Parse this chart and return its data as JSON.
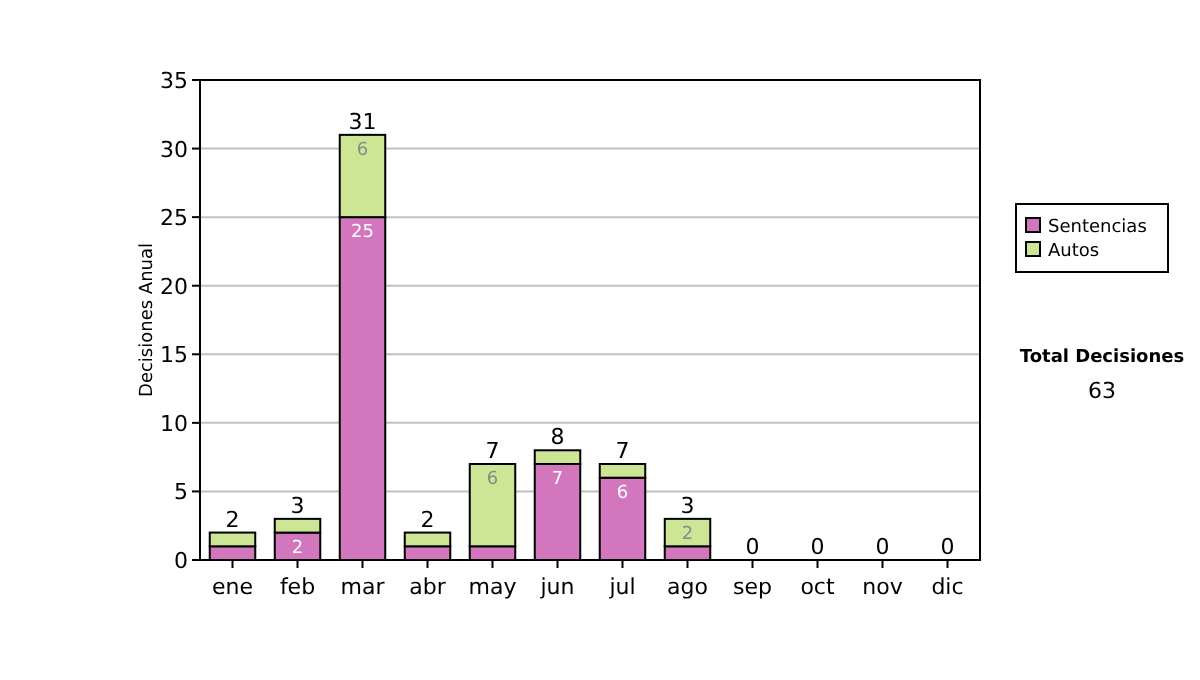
{
  "chart_data": {
    "type": "bar",
    "stacked": true,
    "ylabel": "Decisiones Anual",
    "categories": [
      "ene",
      "feb",
      "mar",
      "abr",
      "may",
      "jun",
      "jul",
      "ago",
      "sep",
      "oct",
      "nov",
      "dic"
    ],
    "series": [
      {
        "name": "Sentencias",
        "color": "#d277bd",
        "values": [
          1,
          2,
          25,
          1,
          1,
          7,
          6,
          1,
          0,
          0,
          0,
          0
        ],
        "value_labels": [
          null,
          "2",
          "25",
          null,
          null,
          "7",
          "6",
          null,
          null,
          null,
          null,
          null
        ]
      },
      {
        "name": "Autos",
        "color": "#cde696",
        "values": [
          1,
          1,
          6,
          1,
          6,
          1,
          1,
          2,
          0,
          0,
          0,
          0
        ],
        "value_labels": [
          null,
          null,
          "6",
          null,
          "6",
          null,
          null,
          "2",
          null,
          null,
          null,
          null
        ]
      }
    ],
    "totals": [
      "2",
      "3",
      "31",
      "2",
      "7",
      "8",
      "7",
      "3",
      "0",
      "0",
      "0",
      "0"
    ],
    "ylim": [
      0,
      35
    ],
    "yticks": [
      0,
      5,
      10,
      15,
      20,
      25,
      30,
      35
    ],
    "grid": "y",
    "legend": "right",
    "annotations": [
      "Total Decisiones",
      "63"
    ]
  }
}
